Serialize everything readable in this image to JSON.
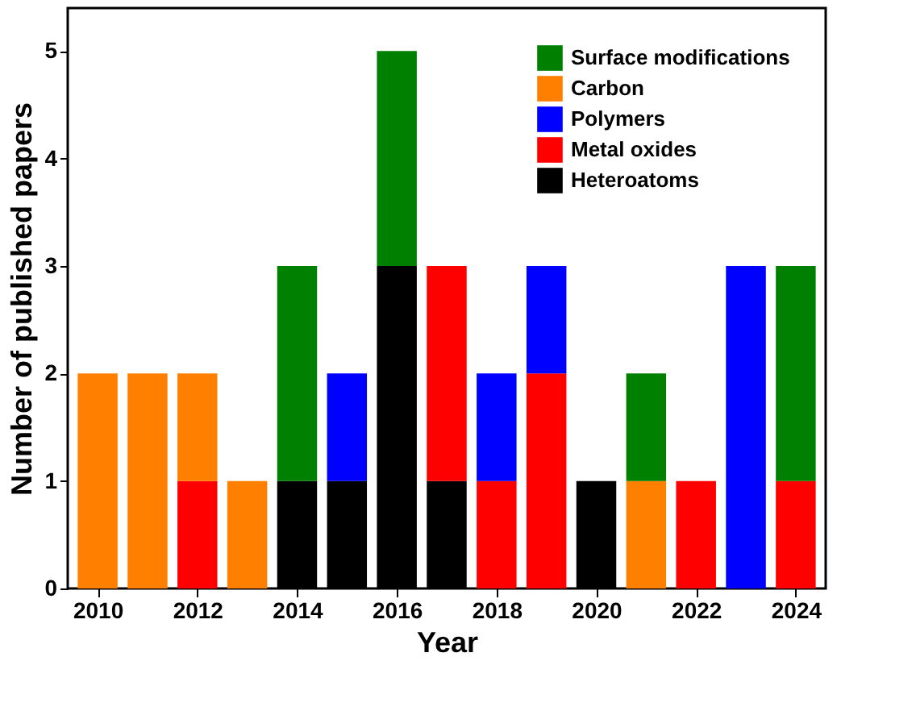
{
  "chart_data": {
    "type": "bar",
    "stacked": true,
    "xlabel": "Year",
    "ylabel": "Number of published papers",
    "x": [
      2010,
      2011,
      2012,
      2013,
      2014,
      2015,
      2016,
      2017,
      2018,
      2019,
      2020,
      2021,
      2022,
      2023,
      2024
    ],
    "series": [
      {
        "name": "Heteroatoms",
        "color": "#000000",
        "values": [
          null,
          null,
          null,
          null,
          1,
          1,
          3,
          1,
          null,
          null,
          1,
          null,
          null,
          null,
          null
        ]
      },
      {
        "name": "Metal oxides",
        "color": "#ff0000",
        "values": [
          null,
          null,
          1,
          null,
          null,
          null,
          null,
          2,
          1,
          2,
          null,
          null,
          1,
          null,
          1
        ]
      },
      {
        "name": "Polymers",
        "color": "#0000ff",
        "values": [
          null,
          null,
          null,
          null,
          null,
          1,
          null,
          null,
          1,
          1,
          null,
          null,
          null,
          3,
          null
        ]
      },
      {
        "name": "Carbon",
        "color": "#ff8000",
        "values": [
          2,
          2,
          1,
          1,
          null,
          null,
          null,
          null,
          null,
          null,
          null,
          1,
          null,
          null,
          null
        ]
      },
      {
        "name": "Surface modifications",
        "color": "#008000",
        "values": [
          null,
          null,
          null,
          null,
          2,
          null,
          2,
          null,
          null,
          null,
          null,
          1,
          null,
          null,
          2
        ]
      }
    ],
    "xlim": [
      2009.4,
      2024.6
    ],
    "xticks": [
      2010,
      2012,
      2014,
      2016,
      2018,
      2020,
      2022,
      2024
    ],
    "ylim": [
      0,
      5.4
    ],
    "yticks": [
      0,
      1,
      2,
      3,
      4,
      5
    ],
    "legend": "top right",
    "grid": false
  }
}
